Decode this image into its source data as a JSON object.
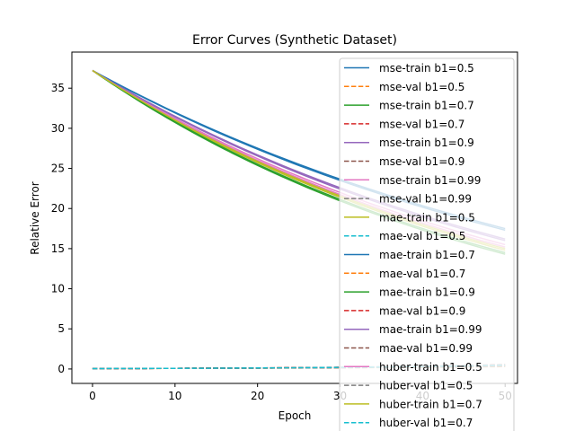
{
  "chart_data": {
    "type": "line",
    "title": "Error Curves (Synthetic Dataset)",
    "xlabel": "Epoch",
    "ylabel": "Relative Error",
    "xlim": [
      -2.5,
      51.5
    ],
    "ylim": [
      -1.8,
      39.5
    ],
    "xticks": [
      0,
      10,
      20,
      30,
      40,
      50
    ],
    "yticks": [
      0,
      5,
      10,
      15,
      20,
      25,
      30,
      35
    ],
    "grid": false,
    "legend_position": "top-right",
    "series": [
      {
        "name": "mse-train b1=0.5",
        "color": "#1f77b4",
        "style": "solid",
        "start": 37.2,
        "end": 17.3
      },
      {
        "name": "mse-val b1=0.5",
        "color": "#ff7f0e",
        "style": "dashed",
        "start": 0.05,
        "end": 0.3
      },
      {
        "name": "mse-train b1=0.7",
        "color": "#2ca02c",
        "style": "solid",
        "start": 37.2,
        "end": 14.3
      },
      {
        "name": "mse-val b1=0.7",
        "color": "#d62728",
        "style": "dashed",
        "start": 0.05,
        "end": 0.5
      },
      {
        "name": "mse-train b1=0.9",
        "color": "#9467bd",
        "style": "solid",
        "start": 37.2,
        "end": 16.2
      },
      {
        "name": "mse-val b1=0.9",
        "color": "#8c564b",
        "style": "dashed",
        "start": 0.05,
        "end": 0.4
      },
      {
        "name": "mse-train b1=0.99",
        "color": "#e377c2",
        "style": "solid",
        "start": 37.2,
        "end": 15.5
      },
      {
        "name": "mse-val b1=0.99",
        "color": "#7f7f7f",
        "style": "dashed",
        "start": 0.05,
        "end": 0.35
      },
      {
        "name": "mae-train b1=0.5",
        "color": "#bcbd22",
        "style": "solid",
        "start": 37.2,
        "end": 14.8
      },
      {
        "name": "mae-val b1=0.5",
        "color": "#17becf",
        "style": "dashed",
        "start": 0.05,
        "end": 0.45
      },
      {
        "name": "mae-train b1=0.7",
        "color": "#1f77b4",
        "style": "solid",
        "start": 37.2,
        "end": 17.5
      },
      {
        "name": "mae-val b1=0.7",
        "color": "#ff7f0e",
        "style": "dashed",
        "start": 0.05,
        "end": 0.5
      },
      {
        "name": "mae-train b1=0.9",
        "color": "#2ca02c",
        "style": "solid",
        "start": 37.2,
        "end": 14.5
      },
      {
        "name": "mae-val b1=0.9",
        "color": "#d62728",
        "style": "dashed",
        "start": 0.05,
        "end": 0.55
      },
      {
        "name": "mae-train b1=0.99",
        "color": "#9467bd",
        "style": "solid",
        "start": 37.2,
        "end": 16.0
      },
      {
        "name": "mae-val b1=0.99",
        "color": "#8c564b",
        "style": "dashed",
        "start": 0.05,
        "end": 0.45
      },
      {
        "name": "huber-train b1=0.5",
        "color": "#e377c2",
        "style": "solid",
        "start": 37.2,
        "end": 15.2
      },
      {
        "name": "huber-val b1=0.5",
        "color": "#7f7f7f",
        "style": "dashed",
        "start": 0.05,
        "end": 0.4
      },
      {
        "name": "huber-train b1=0.7",
        "color": "#bcbd22",
        "style": "solid",
        "start": 37.2,
        "end": 15.0
      },
      {
        "name": "huber-val b1=0.7",
        "color": "#17becf",
        "style": "dashed",
        "start": 0.05,
        "end": 0.5
      }
    ]
  }
}
